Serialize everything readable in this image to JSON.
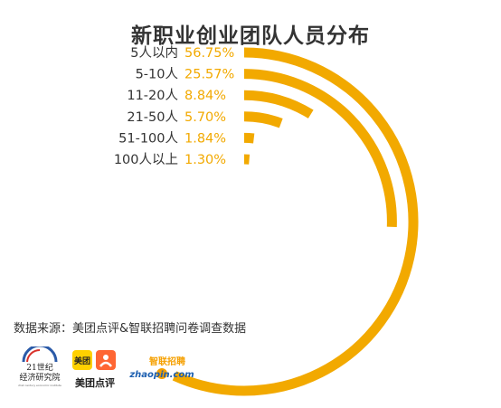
{
  "title": "新职业创业团队人员分布",
  "source": "数据来源：美团点评&智联招聘问卷调查数据",
  "colors": {
    "accent": "#f2a900",
    "text": "#333333"
  },
  "logos": {
    "economics_institute": {
      "line1": "21世纪",
      "line2": "经济研究院",
      "line3": "21st century economic institute"
    },
    "meituan_dianping": {
      "top": "美团",
      "bottom": "美团点评"
    },
    "zhaopin": {
      "top": "智联招聘",
      "bottom": "zhaopin.com"
    }
  },
  "chart_data": {
    "type": "radial-bar",
    "title": "新职业创业团队人员分布",
    "categories": [
      "5人以内",
      "5-10人",
      "11-20人",
      "21-50人",
      "51-100人",
      "100人以上"
    ],
    "values": [
      56.75,
      25.57,
      8.84,
      5.7,
      1.84,
      1.3
    ],
    "labels": [
      "56.75%",
      "25.57%",
      "8.84%",
      "5.70%",
      "1.84%",
      "1.30%"
    ],
    "unit": "%",
    "max": 100
  }
}
